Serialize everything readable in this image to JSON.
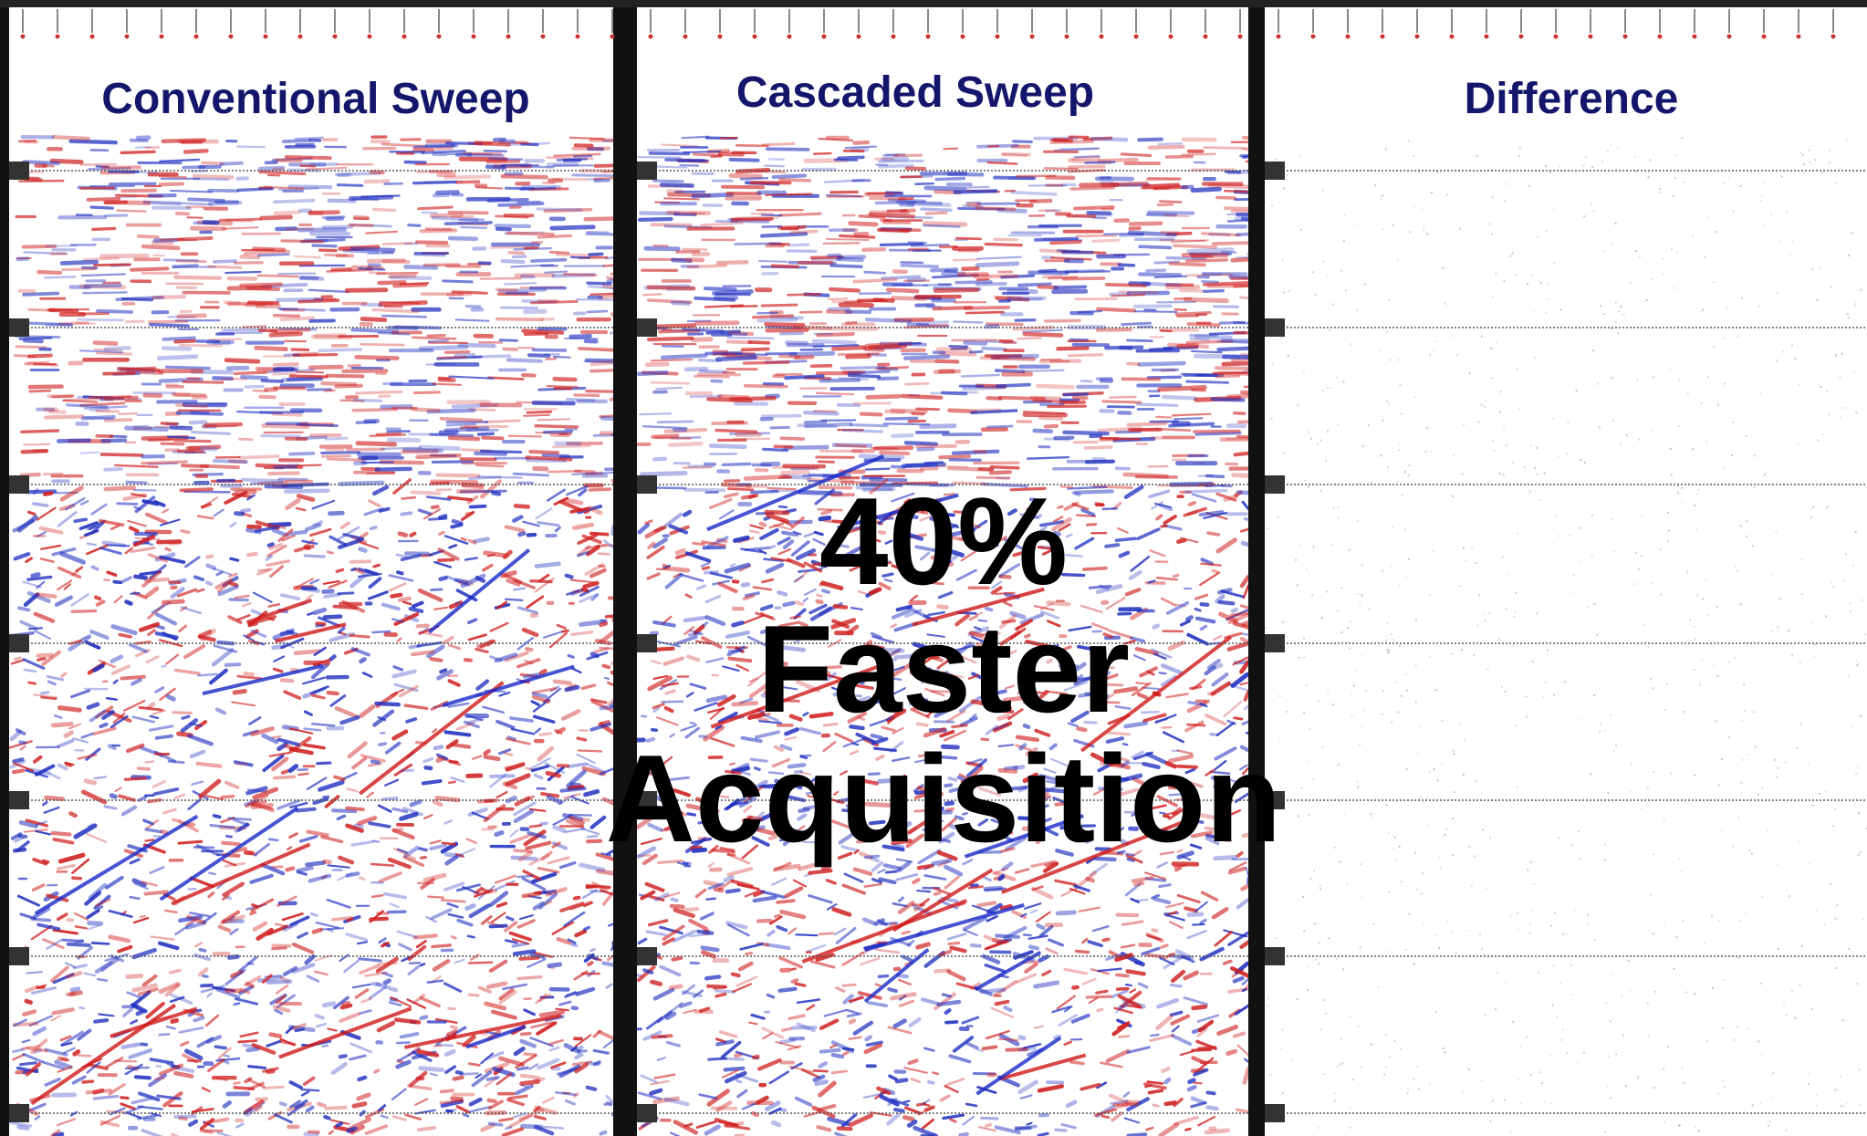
{
  "panels": [
    {
      "title": "Conventional Sweep"
    },
    {
      "title": "Cascaded Sweep"
    },
    {
      "title": "Difference"
    }
  ],
  "overlay": {
    "lines": [
      "40%",
      "Faster",
      "Acquisition"
    ]
  }
}
